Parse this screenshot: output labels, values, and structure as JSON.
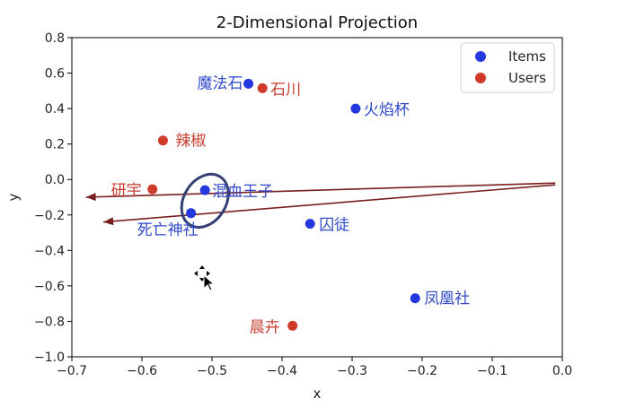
{
  "chart_data": {
    "type": "scatter",
    "title": "2-Dimensional Projection",
    "xlabel": "x",
    "ylabel": "y",
    "xlim": [
      -0.7,
      0.0
    ],
    "ylim": [
      -1.0,
      0.8
    ],
    "x_ticks": [
      "−0.7",
      "−0.6",
      "−0.5",
      "−0.4",
      "−0.3",
      "−0.2",
      "−0.1",
      "0.0"
    ],
    "y_ticks": [
      "−1.0",
      "−0.8",
      "−0.6",
      "−0.4",
      "−0.2",
      "0.0",
      "0.2",
      "0.4",
      "0.6",
      "0.8"
    ],
    "grid": false,
    "legend": {
      "position": "top-right",
      "entries": [
        {
          "name": "Items",
          "color": "#2438e0"
        },
        {
          "name": "Users",
          "color": "#d03a2a"
        }
      ]
    },
    "series": [
      {
        "name": "Items",
        "color": "#2438e0",
        "label_color": "#2f49c9",
        "points": [
          {
            "label": "魔法石",
            "x": -0.448,
            "y": 0.54
          },
          {
            "label": "火焰杯",
            "x": -0.295,
            "y": 0.4
          },
          {
            "label": "混血王子",
            "x": -0.51,
            "y": -0.06
          },
          {
            "label": "死亡神社",
            "x": -0.53,
            "y": -0.19
          },
          {
            "label": "囚徒",
            "x": -0.36,
            "y": -0.25
          },
          {
            "label": "凤凰社",
            "x": -0.21,
            "y": -0.67
          }
        ]
      },
      {
        "name": "Users",
        "color": "#d03a2a",
        "label_color": "#c63d30",
        "points": [
          {
            "label": "石川",
            "x": -0.428,
            "y": 0.515
          },
          {
            "label": "辣椒",
            "x": -0.57,
            "y": 0.22
          },
          {
            "label": "研宇",
            "x": -0.585,
            "y": -0.055
          },
          {
            "label": "晨卉",
            "x": -0.385,
            "y": -0.825
          }
        ]
      }
    ],
    "arrows": [
      {
        "from": [
          -0.01,
          -0.02
        ],
        "to": [
          -0.68,
          -0.1
        ]
      },
      {
        "from": [
          -0.01,
          -0.03
        ],
        "to": [
          -0.655,
          -0.24
        ]
      }
    ],
    "ellipse": {
      "center": [
        -0.51,
        -0.12
      ],
      "rx": 0.03,
      "ry": 0.16,
      "rotate": 32
    }
  }
}
